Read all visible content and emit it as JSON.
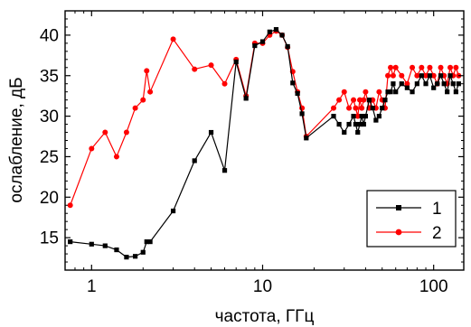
{
  "chart_data": {
    "type": "line",
    "title": "",
    "xlabel": "частота, ГГц",
    "ylabel": "ослабление, дБ",
    "xscale": "log",
    "xlim": [
      0.7,
      150
    ],
    "ylim": [
      11,
      43
    ],
    "grid": false,
    "legend_position": "bottom-right",
    "x_ticks": [
      1,
      10,
      100
    ],
    "x_tick_labels": [
      "1",
      "10",
      "100"
    ],
    "y_ticks": [
      15,
      20,
      25,
      30,
      35,
      40
    ],
    "y_tick_labels": [
      "15",
      "20",
      "25",
      "30",
      "35",
      "40"
    ],
    "series": [
      {
        "name": "1",
        "color": "#000000",
        "marker": "square",
        "x": [
          0.75,
          1.0,
          1.2,
          1.4,
          1.6,
          1.8,
          2.0,
          2.1,
          2.2,
          3.0,
          4.0,
          5.0,
          6.0,
          7.0,
          8.0,
          9.0,
          10.0,
          11.0,
          12.0,
          13.0,
          14.0,
          15.0,
          16.0,
          17.0,
          18.0,
          26.0,
          28.0,
          30.0,
          32.0,
          34.0,
          35.0,
          36.0,
          37.0,
          38.0,
          39.0,
          40.0,
          42.0,
          44.0,
          46.0,
          48.0,
          50.0,
          52.0,
          54.0,
          56.0,
          58.0,
          60.0,
          65.0,
          70.0,
          75.0,
          80.0,
          85.0,
          90.0,
          95.0,
          100.0,
          105.0,
          110.0,
          115.0,
          120.0,
          125.0,
          130.0,
          135.0,
          140.0
        ],
        "y": [
          14.5,
          14.2,
          14.0,
          13.5,
          12.6,
          12.7,
          13.2,
          14.5,
          14.5,
          18.3,
          24.5,
          28.0,
          23.3,
          36.7,
          32.2,
          38.7,
          39.2,
          40.4,
          40.7,
          40.0,
          38.6,
          34.1,
          32.8,
          30.3,
          27.3,
          30.0,
          29.0,
          28.0,
          29.0,
          30.0,
          29.0,
          28.0,
          29.0,
          30.0,
          29.0,
          30.0,
          32.0,
          31.0,
          29.5,
          30.0,
          31.0,
          32.0,
          33.0,
          33.0,
          34.0,
          33.0,
          34.0,
          33.5,
          33.0,
          34.0,
          35.0,
          34.0,
          35.0,
          33.5,
          34.0,
          35.0,
          34.0,
          33.0,
          35.0,
          34.0,
          33.0,
          34.0
        ]
      },
      {
        "name": "2",
        "color": "#ff0000",
        "marker": "circle",
        "x": [
          0.75,
          1.0,
          1.2,
          1.4,
          1.6,
          1.8,
          2.0,
          2.1,
          2.2,
          3.0,
          4.0,
          5.0,
          6.0,
          7.0,
          8.0,
          9.0,
          10.0,
          11.0,
          12.0,
          13.0,
          14.0,
          15.0,
          16.0,
          17.0,
          18.0,
          26.0,
          28.0,
          30.0,
          32.0,
          34.0,
          35.0,
          36.0,
          37.0,
          38.0,
          39.0,
          40.0,
          42.0,
          44.0,
          46.0,
          48.0,
          50.0,
          52.0,
          54.0,
          56.0,
          58.0,
          60.0,
          65.0,
          70.0,
          75.0,
          80.0,
          85.0,
          90.0,
          95.0,
          100.0,
          105.0,
          110.0,
          115.0,
          120.0,
          125.0,
          130.0,
          135.0,
          140.0
        ],
        "y": [
          19.0,
          26.0,
          28.0,
          25.0,
          28.0,
          31.0,
          32.0,
          35.6,
          33.0,
          39.5,
          35.8,
          36.3,
          34.0,
          37.0,
          32.5,
          39.0,
          39.0,
          40.0,
          40.5,
          40.0,
          38.5,
          35.5,
          33.0,
          31.0,
          27.5,
          31.0,
          32.0,
          33.0,
          31.0,
          32.0,
          31.0,
          30.0,
          32.0,
          31.0,
          32.0,
          33.0,
          31.0,
          32.0,
          31.0,
          33.0,
          32.0,
          31.0,
          35.0,
          36.0,
          35.0,
          36.0,
          35.0,
          34.0,
          36.0,
          35.0,
          36.0,
          35.0,
          36.0,
          35.0,
          34.0,
          36.0,
          35.0,
          34.0,
          36.0,
          35.0,
          36.0,
          35.0
        ]
      }
    ]
  }
}
